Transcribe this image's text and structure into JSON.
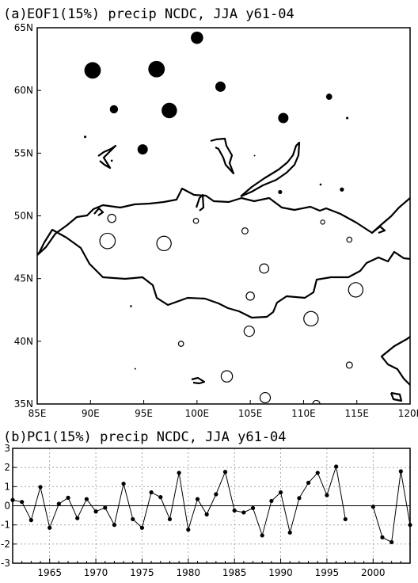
{
  "chart_data": [
    {
      "type": "scatter",
      "panel": "(a)",
      "title": "EOF1(15%) precip NCDC, JJA y61-04",
      "xlim": [
        85,
        120
      ],
      "ylim": [
        35,
        65
      ],
      "x_ticks": [
        85,
        90,
        95,
        100,
        105,
        110,
        115,
        120
      ],
      "x_tick_labels": [
        "85E",
        "90E",
        "95E",
        "100E",
        "105E",
        "110E",
        "115E",
        "120E"
      ],
      "y_ticks": [
        35,
        40,
        45,
        50,
        55,
        60,
        65
      ],
      "y_tick_labels": [
        "35N",
        "40N",
        "45N",
        "50N",
        "55N",
        "60N",
        "65N"
      ],
      "grid": false,
      "legend": "none",
      "marker_fill": {
        "positive": "#000000",
        "negative": "#ffffff"
      },
      "points": [
        {
          "lon": 100.0,
          "lat": 64.2,
          "value": 0.6
        },
        {
          "lon": 90.2,
          "lat": 61.6,
          "value": 0.8
        },
        {
          "lon": 96.2,
          "lat": 61.7,
          "value": 0.8
        },
        {
          "lon": 102.2,
          "lat": 60.3,
          "value": 0.5
        },
        {
          "lon": 92.2,
          "lat": 58.5,
          "value": 0.4
        },
        {
          "lon": 97.4,
          "lat": 58.4,
          "value": 0.75
        },
        {
          "lon": 108.1,
          "lat": 57.8,
          "value": 0.5
        },
        {
          "lon": 112.4,
          "lat": 59.5,
          "value": 0.3
        },
        {
          "lon": 114.1,
          "lat": 57.8,
          "value": 0.12
        },
        {
          "lon": 89.5,
          "lat": 56.3,
          "value": 0.12
        },
        {
          "lon": 94.9,
          "lat": 55.3,
          "value": 0.5
        },
        {
          "lon": 92.0,
          "lat": 54.4,
          "value": 0.1
        },
        {
          "lon": 105.4,
          "lat": 54.8,
          "value": 0.05
        },
        {
          "lon": 107.8,
          "lat": 51.9,
          "value": 0.2
        },
        {
          "lon": 111.6,
          "lat": 52.5,
          "value": 0.1
        },
        {
          "lon": 113.6,
          "lat": 52.1,
          "value": 0.2
        },
        {
          "lon": 92.0,
          "lat": 49.8,
          "value": -0.4
        },
        {
          "lon": 99.9,
          "lat": 49.6,
          "value": -0.25
        },
        {
          "lon": 111.8,
          "lat": 49.5,
          "value": -0.2
        },
        {
          "lon": 104.5,
          "lat": 48.8,
          "value": -0.3
        },
        {
          "lon": 91.6,
          "lat": 48.0,
          "value": -0.75
        },
        {
          "lon": 96.9,
          "lat": 47.8,
          "value": -0.7
        },
        {
          "lon": 114.3,
          "lat": 48.1,
          "value": -0.25
        },
        {
          "lon": 106.3,
          "lat": 45.8,
          "value": -0.45
        },
        {
          "lon": 105.0,
          "lat": 43.6,
          "value": -0.4
        },
        {
          "lon": 114.9,
          "lat": 44.1,
          "value": -0.7
        },
        {
          "lon": 93.8,
          "lat": 42.8,
          "value": 0.1
        },
        {
          "lon": 110.7,
          "lat": 41.8,
          "value": -0.7
        },
        {
          "lon": 104.9,
          "lat": 40.8,
          "value": -0.5
        },
        {
          "lon": 98.5,
          "lat": 39.8,
          "value": -0.25
        },
        {
          "lon": 94.2,
          "lat": 37.8,
          "value": 0.05
        },
        {
          "lon": 114.3,
          "lat": 38.1,
          "value": -0.3
        },
        {
          "lon": 102.8,
          "lat": 37.2,
          "value": -0.55
        },
        {
          "lon": 106.4,
          "lat": 35.5,
          "value": -0.5
        },
        {
          "lon": 111.2,
          "lat": 35.0,
          "value": -0.35
        }
      ]
    },
    {
      "type": "line",
      "panel": "(b)",
      "title": "PC1(15%) precip NCDC, JJA y61-04",
      "xlim": [
        1961,
        2004
      ],
      "ylim": [
        -3,
        3
      ],
      "x_ticks": [
        1965,
        1970,
        1975,
        1980,
        1985,
        1990,
        1995,
        2000
      ],
      "y_ticks": [
        -3,
        -2,
        -1,
        0,
        1,
        2,
        3
      ],
      "grid": true,
      "legend": "none",
      "x": [
        1961,
        1962,
        1963,
        1964,
        1965,
        1966,
        1967,
        1968,
        1969,
        1970,
        1971,
        1972,
        1973,
        1974,
        1975,
        1976,
        1977,
        1978,
        1979,
        1980,
        1981,
        1982,
        1983,
        1984,
        1985,
        1986,
        1987,
        1988,
        1989,
        1990,
        1991,
        1992,
        1993,
        1994,
        1995,
        1996,
        1997,
        1998,
        1999,
        2000,
        2001,
        2002,
        2003,
        2004
      ],
      "series": [
        {
          "values": [
            0.3,
            0.2,
            -0.75,
            0.98,
            -1.15,
            0.1,
            0.42,
            -0.65,
            0.35,
            -0.3,
            -0.1,
            -1.0,
            1.15,
            -0.7,
            -1.15,
            0.7,
            0.45,
            -0.7,
            1.72,
            -1.25,
            0.35,
            -0.45,
            0.6,
            1.77,
            -0.25,
            -0.35,
            -0.12,
            -1.55,
            0.25,
            0.7,
            -1.4,
            0.4,
            1.2,
            1.72,
            0.55,
            2.05,
            -0.7,
            null,
            null,
            -0.05,
            -1.65,
            -1.9,
            1.8,
            -1.0
          ]
        }
      ]
    }
  ]
}
